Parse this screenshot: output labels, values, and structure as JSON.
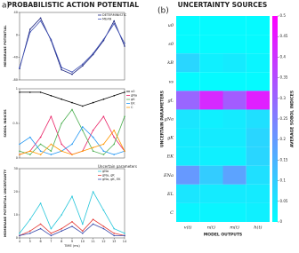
{
  "panel_labels": [
    "a)",
    "(b)"
  ],
  "chart_data": [
    {
      "type": "line",
      "title": "PROBABILISTIC ACTION POTENTIAL",
      "ylabel": "MEMBRANE POTENTIAL",
      "x": [
        4,
        5,
        6,
        7,
        8,
        9,
        10,
        11,
        12,
        13,
        14
      ],
      "xlim": [
        4,
        14
      ],
      "ylim": [
        -80,
        40
      ],
      "yticks": [
        -80,
        -40,
        0,
        40
      ],
      "legend": "upper right",
      "series": [
        {
          "name": "DETERMINISTIC",
          "color": "#1a237e",
          "values": [
            -60,
            10,
            30,
            -10,
            -62,
            -70,
            -55,
            -35,
            -10,
            25,
            -20
          ]
        },
        {
          "name": "MEAN",
          "color": "#3f51b5",
          "values": [
            -58,
            5,
            25,
            -8,
            -58,
            -66,
            -52,
            -33,
            -8,
            20,
            -15
          ]
        }
      ]
    },
    {
      "type": "line",
      "ylabel": "SOBOL INDICES",
      "x": [
        4,
        5,
        6,
        7,
        8,
        9,
        10,
        11,
        12,
        13,
        14
      ],
      "xlim": [
        4,
        14
      ],
      "ylim": [
        0,
        1
      ],
      "yticks": [
        0,
        0.5,
        1
      ],
      "legend": "right",
      "series": [
        {
          "name": "u0",
          "color": "#000000",
          "values": [
            0.95,
            0.95,
            0.95,
            0.9,
            0.85,
            0.8,
            0.75,
            0.8,
            0.85,
            0.9,
            0.95
          ]
        },
        {
          "name": "gNa",
          "color": "#e91e63",
          "values": [
            0.05,
            0.1,
            0.3,
            0.6,
            0.2,
            0.05,
            0.1,
            0.4,
            0.6,
            0.3,
            0.1
          ]
        },
        {
          "name": "gK",
          "color": "#4caf50",
          "values": [
            0.1,
            0.05,
            0.2,
            0.1,
            0.5,
            0.7,
            0.4,
            0.1,
            0.05,
            0.2,
            0.6
          ]
        },
        {
          "name": "EK",
          "color": "#2196f3",
          "values": [
            0.2,
            0.3,
            0.1,
            0.05,
            0.1,
            0.2,
            0.45,
            0.3,
            0.1,
            0.05,
            0.1
          ]
        },
        {
          "name": "C",
          "color": "#ff9800",
          "values": [
            0.05,
            0.1,
            0.05,
            0.2,
            0.1,
            0.05,
            0.1,
            0.15,
            0.2,
            0.4,
            0.1
          ]
        }
      ]
    },
    {
      "type": "line",
      "ylabel": "MEMBRANE POTENTIAL UNCERTAINTY",
      "xlabel": "TIME (ms)",
      "annotation": "Uncertain parameters",
      "x": [
        4,
        5,
        6,
        7,
        8,
        9,
        10,
        11,
        12,
        13,
        14
      ],
      "xlim": [
        4,
        14
      ],
      "xticks": [
        4,
        5,
        6,
        7,
        8,
        9,
        10,
        11,
        12,
        13,
        14
      ],
      "ylim": [
        0,
        30
      ],
      "yticks": [
        0,
        10,
        20,
        30
      ],
      "legend": "upper right",
      "series": [
        {
          "name": "gNa",
          "color": "#26c6da",
          "values": [
            2,
            8,
            15,
            4,
            10,
            18,
            6,
            20,
            12,
            4,
            2
          ]
        },
        {
          "name": "gNa, gK",
          "color": "#e53935",
          "values": [
            1,
            3,
            6,
            2,
            4,
            7,
            3,
            8,
            5,
            2,
            1
          ]
        },
        {
          "name": "gNa, gK, EK",
          "color": "#3949ab",
          "values": [
            1,
            2,
            4,
            1,
            3,
            5,
            2,
            6,
            4,
            1,
            1
          ]
        }
      ]
    },
    {
      "type": "heatmap",
      "title": "UNCERTAINTY SOURCES",
      "xlabel": "MODEL OUTPUTS",
      "ylabel": "UNCERTAIN PARAMETERS",
      "colorbar_label": "AVERAGE SOBOL INDICES",
      "colormap": [
        "#00ffff",
        "#ff00ff"
      ],
      "columns": [
        "v(t)",
        "n(t)",
        "m(t)",
        "h(t)"
      ],
      "rows": [
        "u0",
        "s0",
        "kB",
        "vs",
        "gL",
        "gNa",
        "gK",
        "EK",
        "ENa",
        "EL",
        "C"
      ],
      "values": [
        [
          0.01,
          0.01,
          0.01,
          0.01
        ],
        [
          0.01,
          0.01,
          0.01,
          0.01
        ],
        [
          0.08,
          0.03,
          0.04,
          0.02
        ],
        [
          0.01,
          0.01,
          0.01,
          0.01
        ],
        [
          0.3,
          0.42,
          0.32,
          0.44
        ],
        [
          0.05,
          0.03,
          0.04,
          0.06
        ],
        [
          0.04,
          0.04,
          0.04,
          0.08
        ],
        [
          0.04,
          0.03,
          0.03,
          0.08
        ],
        [
          0.2,
          0.1,
          0.18,
          0.06
        ],
        [
          0.05,
          0.04,
          0.04,
          0.04
        ],
        [
          0.02,
          0.02,
          0.02,
          0.03
        ]
      ],
      "clim": [
        0,
        0.5
      ],
      "cticks": [
        0,
        0.05,
        0.1,
        0.15,
        0.2,
        0.25,
        0.3,
        0.35,
        0.4,
        0.45,
        0.5
      ]
    }
  ]
}
